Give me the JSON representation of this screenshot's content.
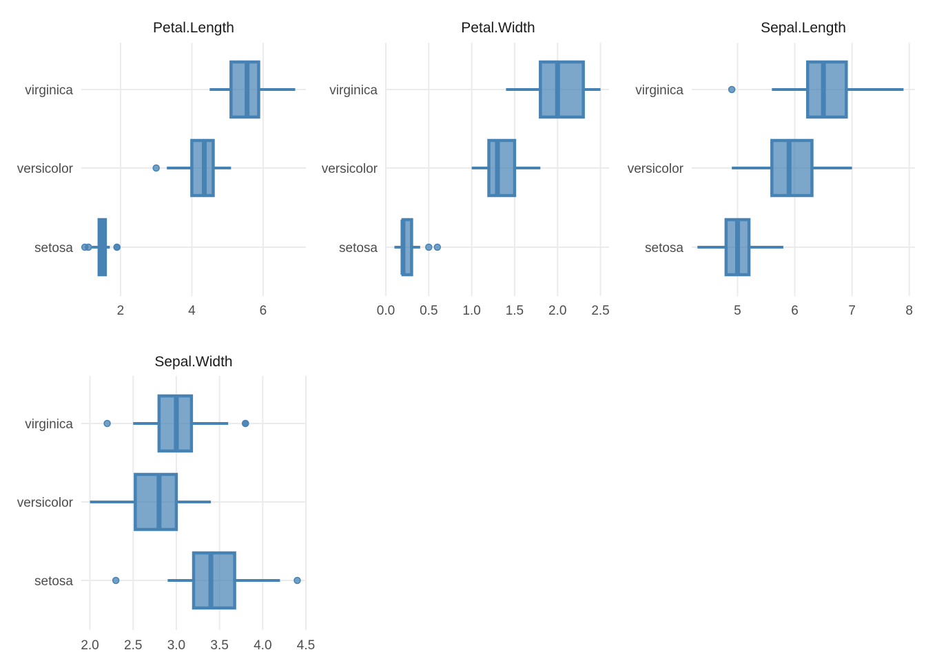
{
  "colors": {
    "box": "#4682B4",
    "grid": "#EBEBEB",
    "text": "#4D4D4D",
    "title": "#1A1A1A"
  },
  "chart_data": [
    {
      "type": "box",
      "title": "Petal.Length",
      "categories": [
        "virginica",
        "versicolor",
        "setosa"
      ],
      "xlim": [
        0.9,
        7.2
      ],
      "xticks": [
        2,
        4,
        6
      ],
      "xtick_labels": [
        "2",
        "4",
        "6"
      ],
      "boxes": [
        {
          "category": "virginica",
          "whisker_low": 4.5,
          "q1": 5.1,
          "median": 5.55,
          "q3": 5.875,
          "whisker_high": 6.9,
          "outliers": []
        },
        {
          "category": "versicolor",
          "whisker_low": 3.3,
          "q1": 4.0,
          "median": 4.35,
          "q3": 4.6,
          "whisker_high": 5.1,
          "outliers": [
            3.0
          ]
        },
        {
          "category": "setosa",
          "whisker_low": 1.2,
          "q1": 1.4,
          "median": 1.5,
          "q3": 1.575,
          "whisker_high": 1.7,
          "outliers": [
            1.0,
            1.1,
            1.9,
            1.9
          ]
        }
      ]
    },
    {
      "type": "box",
      "title": "Petal.Width",
      "categories": [
        "virginica",
        "versicolor",
        "setosa"
      ],
      "xlim": [
        0.0,
        2.6
      ],
      "xticks": [
        0.0,
        0.5,
        1.0,
        1.5,
        2.0,
        2.5
      ],
      "xtick_labels": [
        "0.0",
        "0.5",
        "1.0",
        "1.5",
        "2.0",
        "2.5"
      ],
      "boxes": [
        {
          "category": "virginica",
          "whisker_low": 1.4,
          "q1": 1.8,
          "median": 2.0,
          "q3": 2.3,
          "whisker_high": 2.5,
          "outliers": []
        },
        {
          "category": "versicolor",
          "whisker_low": 1.0,
          "q1": 1.2,
          "median": 1.3,
          "q3": 1.5,
          "whisker_high": 1.8,
          "outliers": []
        },
        {
          "category": "setosa",
          "whisker_low": 0.1,
          "q1": 0.2,
          "median": 0.2,
          "q3": 0.3,
          "whisker_high": 0.4,
          "outliers": [
            0.5,
            0.6
          ]
        }
      ]
    },
    {
      "type": "box",
      "title": "Sepal.Length",
      "categories": [
        "virginica",
        "versicolor",
        "setosa"
      ],
      "xlim": [
        4.2,
        8.1
      ],
      "xticks": [
        5,
        6,
        7,
        8
      ],
      "xtick_labels": [
        "5",
        "6",
        "7",
        "8"
      ],
      "boxes": [
        {
          "category": "virginica",
          "whisker_low": 5.6,
          "q1": 6.225,
          "median": 6.5,
          "q3": 6.9,
          "whisker_high": 7.9,
          "outliers": [
            4.9
          ]
        },
        {
          "category": "versicolor",
          "whisker_low": 4.9,
          "q1": 5.6,
          "median": 5.9,
          "q3": 6.3,
          "whisker_high": 7.0,
          "outliers": []
        },
        {
          "category": "setosa",
          "whisker_low": 4.3,
          "q1": 4.8,
          "median": 5.0,
          "q3": 5.2,
          "whisker_high": 5.8,
          "outliers": []
        }
      ]
    },
    {
      "type": "box",
      "title": "Sepal.Width",
      "categories": [
        "virginica",
        "versicolor",
        "setosa"
      ],
      "xlim": [
        1.9,
        4.5
      ],
      "xticks": [
        2.0,
        2.5,
        3.0,
        3.5,
        4.0,
        4.5
      ],
      "xtick_labels": [
        "2.0",
        "2.5",
        "3.0",
        "3.5",
        "4.0",
        "4.5"
      ],
      "boxes": [
        {
          "category": "virginica",
          "whisker_low": 2.5,
          "q1": 2.8,
          "median": 3.0,
          "q3": 3.175,
          "whisker_high": 3.6,
          "outliers": [
            2.2,
            3.8,
            3.8
          ]
        },
        {
          "category": "versicolor",
          "whisker_low": 2.0,
          "q1": 2.525,
          "median": 2.8,
          "q3": 3.0,
          "whisker_high": 3.4,
          "outliers": []
        },
        {
          "category": "setosa",
          "whisker_low": 2.9,
          "q1": 3.2,
          "median": 3.4,
          "q3": 3.675,
          "whisker_high": 4.2,
          "outliers": [
            2.3,
            4.4
          ]
        }
      ]
    }
  ]
}
